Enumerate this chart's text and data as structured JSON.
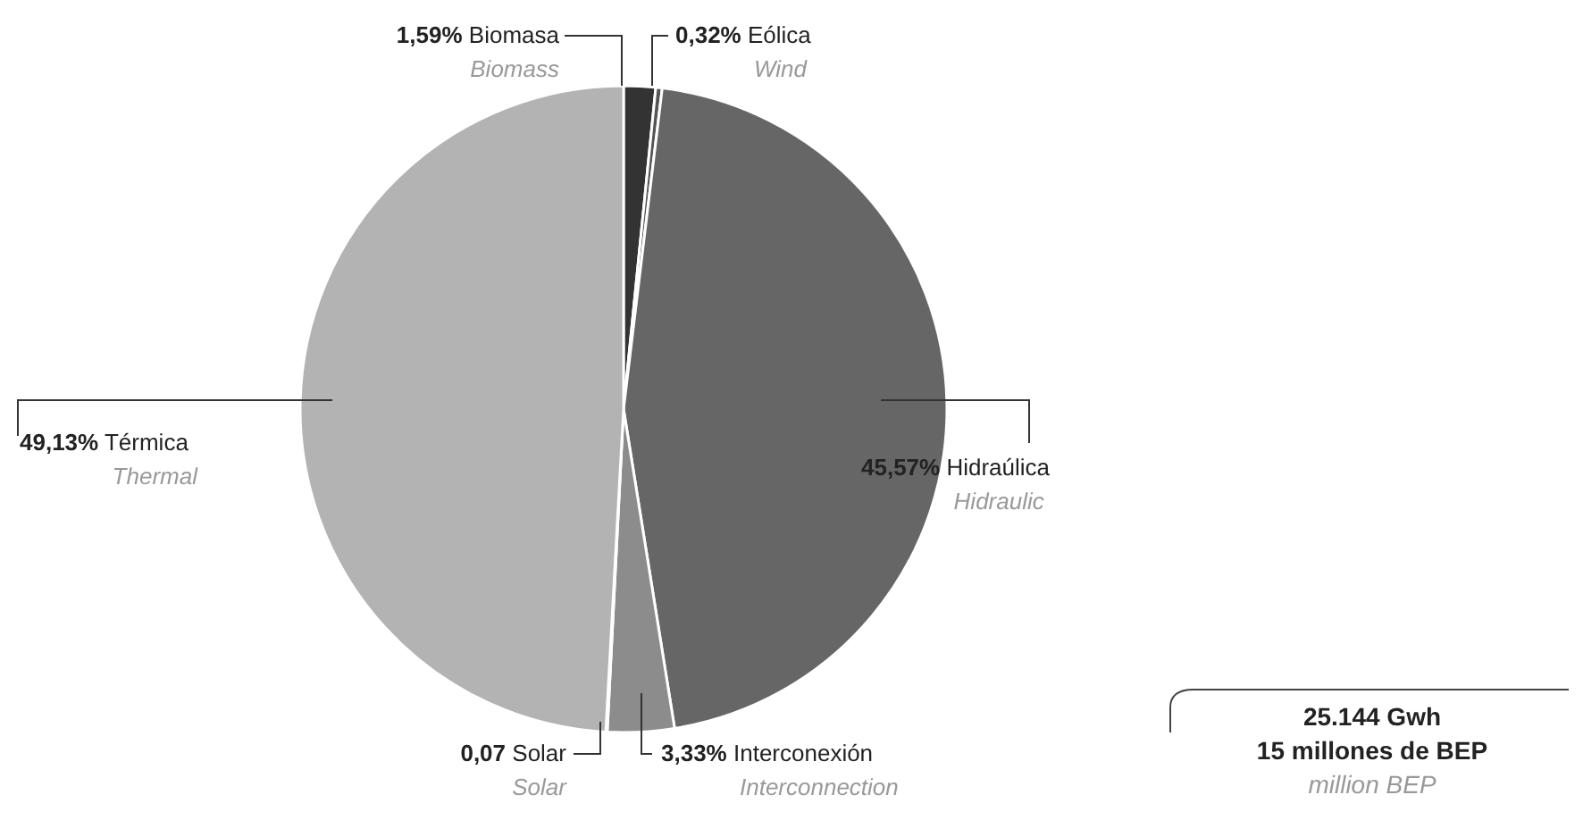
{
  "chart_data": {
    "type": "pie",
    "categories": [
      "Biomasa",
      "Eólica",
      "Hidraúlica",
      "Interconexión",
      "Solar",
      "Térmica"
    ],
    "values": [
      1.59,
      0.32,
      45.57,
      3.33,
      0.07,
      49.13
    ],
    "value_labels": [
      "1,59%",
      "0,32%",
      "45,57%",
      "3,33%",
      "0,07",
      "49,13%"
    ],
    "colors": [
      "#333333",
      "#555555",
      "#666666",
      "#8c8c8c",
      "#c4c4c4",
      "#b3b3b3"
    ],
    "legend": false,
    "annotations": [
      {
        "text": "Biomass",
        "x": "Biomasa"
      },
      {
        "text": "Wind",
        "x": "Eólica"
      },
      {
        "text": "Hidraulic",
        "x": "Hidraúlica"
      },
      {
        "text": "Interconnection",
        "x": "Interconexión"
      },
      {
        "text": "Solar",
        "x": "Solar"
      },
      {
        "text": "Thermal",
        "x": "Térmica"
      },
      "25.144 Gwh",
      "15 millones de BEP",
      "million BEP"
    ]
  }
}
